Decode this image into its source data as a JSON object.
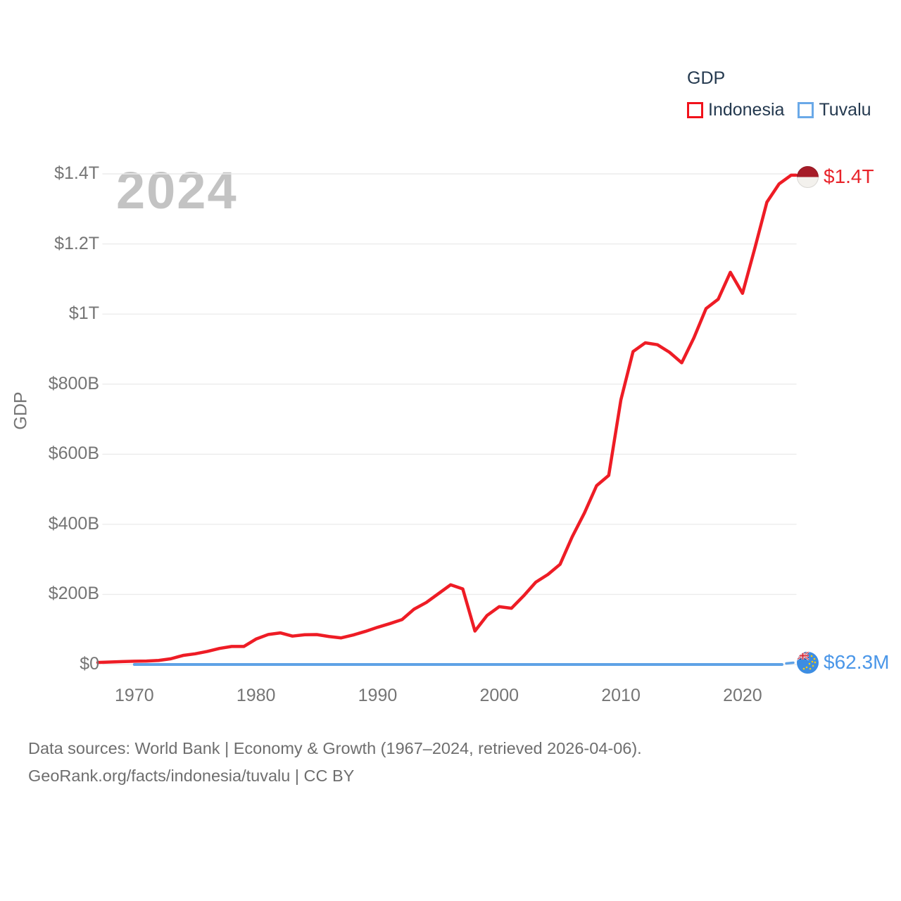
{
  "legend": {
    "title": "GDP",
    "items": [
      {
        "label": "Indonesia",
        "color": "#f1121b"
      },
      {
        "label": "Tuvalu",
        "color": "#6aa9e8"
      }
    ]
  },
  "watermark": "2024",
  "axes": {
    "y_title": "GDP",
    "y_ticks": [
      {
        "label": "$0",
        "value_b": 0
      },
      {
        "label": "$200B",
        "value_b": 200
      },
      {
        "label": "$400B",
        "value_b": 400
      },
      {
        "label": "$600B",
        "value_b": 600
      },
      {
        "label": "$800B",
        "value_b": 800
      },
      {
        "label": "$1T",
        "value_b": 1000
      },
      {
        "label": "$1.2T",
        "value_b": 1200
      },
      {
        "label": "$1.4T",
        "value_b": 1400
      }
    ],
    "x_ticks": [
      {
        "label": "1970",
        "year": 1970
      },
      {
        "label": "1980",
        "year": 1980
      },
      {
        "label": "1990",
        "year": 1990
      },
      {
        "label": "2000",
        "year": 2000
      },
      {
        "label": "2010",
        "year": 2010
      },
      {
        "label": "2020",
        "year": 2020
      }
    ]
  },
  "end_labels": {
    "indonesia": {
      "text": "$1.4T",
      "color": "#e8242b",
      "flag": "indonesia-flag"
    },
    "tuvalu": {
      "text": "$62.3M",
      "color": "#4a96e8",
      "flag": "tuvalu-flag"
    }
  },
  "footer": {
    "line1": "Data sources: World Bank | Economy & Growth (1967–2024, retrieved 2026-04-06).",
    "line2": "GeoRank.org/facts/indonesia/tuvalu | CC BY"
  },
  "chart_data": {
    "type": "line",
    "title": "GDP",
    "ylabel": "GDP",
    "xlabel": "",
    "x_range": [
      1967,
      2024
    ],
    "ylim_b": [
      0,
      1400
    ],
    "grid": "horizontal",
    "legend_position": "top-right",
    "x_years": [
      1967,
      1968,
      1969,
      1970,
      1971,
      1972,
      1973,
      1974,
      1975,
      1976,
      1977,
      1978,
      1979,
      1980,
      1981,
      1982,
      1983,
      1984,
      1985,
      1986,
      1987,
      1988,
      1989,
      1990,
      1991,
      1992,
      1993,
      1994,
      1995,
      1996,
      1997,
      1998,
      1999,
      2000,
      2001,
      2002,
      2003,
      2004,
      2005,
      2006,
      2007,
      2008,
      2009,
      2010,
      2011,
      2012,
      2013,
      2014,
      2015,
      2016,
      2017,
      2018,
      2019,
      2020,
      2021,
      2022,
      2023,
      2024
    ],
    "series": [
      {
        "name": "Indonesia",
        "color": "#ee1c25",
        "unit": "USD billions",
        "values_b": [
          5.7,
          7.1,
          8.3,
          9.2,
          9.9,
          11.6,
          16.3,
          25.8,
          30.5,
          37.3,
          45.8,
          51.5,
          51.4,
          72.5,
          85.5,
          90.2,
          81.0,
          84.9,
          85.3,
          79.9,
          75.9,
          84.3,
          94.5,
          106.1,
          116.6,
          128.0,
          158.0,
          176.9,
          202.1,
          227.4,
          215.7,
          95.4,
          140.0,
          165.0,
          160.4,
          195.7,
          234.8,
          256.8,
          285.9,
          364.6,
          432.2,
          510.2,
          539.6,
          755.1,
          893.0,
          917.9,
          912.5,
          890.8,
          860.9,
          931.9,
          1015.6,
          1042.3,
          1119.1,
          1059.1,
          1186.5,
          1319.1,
          1371.2,
          1396.3
        ],
        "end_value_label": "$1.4T"
      },
      {
        "name": "Tuvalu",
        "color": "#5fa2e6",
        "unit": "USD billions",
        "start_year": 1970,
        "end_year": 2024,
        "value_2024_b": 0.0623,
        "values_note": "flat at ≈$0 on this scale from 1970 through 2024 (2024 value $62.3M)",
        "end_value_label": "$62.3M"
      }
    ]
  }
}
